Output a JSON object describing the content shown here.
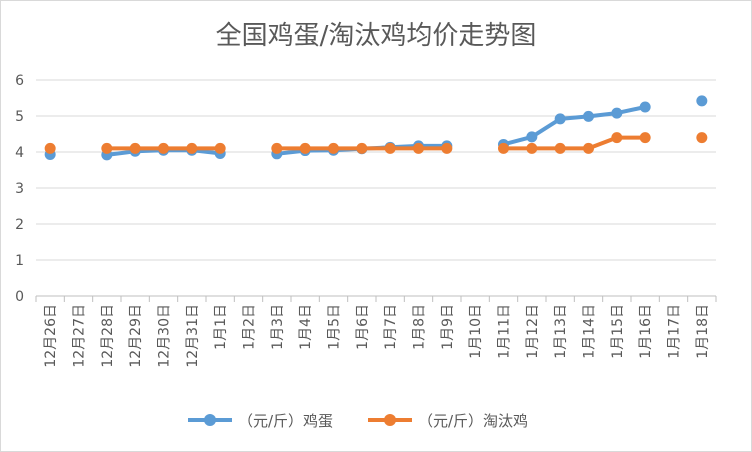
{
  "chart_data": {
    "type": "line",
    "title": "全国鸡蛋/淘汰鸡均价走势图",
    "xlabel": "",
    "ylabel": "",
    "ylim": [
      0,
      6
    ],
    "yticks": [
      "0",
      "1",
      "2",
      "3",
      "4",
      "5",
      "6"
    ],
    "grid": true,
    "legend_position": "bottom",
    "categories": [
      "12月26日",
      "12月27日",
      "12月28日",
      "12月29日",
      "12月30日",
      "12月31日",
      "1月1日",
      "1月2日",
      "1月3日",
      "1月4日",
      "1月5日",
      "1月6日",
      "1月7日",
      "1月8日",
      "1月9日",
      "1月10日",
      "1月11日",
      "1月12日",
      "1月13日",
      "1月14日",
      "1月15日",
      "1月16日",
      "1月17日",
      "1月18日"
    ],
    "series": [
      {
        "name": "（元/斤）鸡蛋",
        "color": "#5B9BD5",
        "values": [
          3.93,
          null,
          3.92,
          4.02,
          4.05,
          4.05,
          3.96,
          null,
          3.95,
          4.04,
          4.05,
          4.09,
          4.13,
          4.17,
          4.17,
          null,
          4.21,
          4.42,
          4.92,
          4.99,
          5.08,
          5.25,
          null,
          5.42
        ]
      },
      {
        "name": "（元/斤）淘汰鸡",
        "color": "#ED7D31",
        "values": [
          4.1,
          null,
          4.1,
          4.1,
          4.1,
          4.1,
          4.1,
          null,
          4.1,
          4.1,
          4.1,
          4.1,
          4.1,
          4.1,
          4.1,
          null,
          4.1,
          4.1,
          4.1,
          4.1,
          4.4,
          4.4,
          null,
          4.4
        ]
      }
    ]
  }
}
